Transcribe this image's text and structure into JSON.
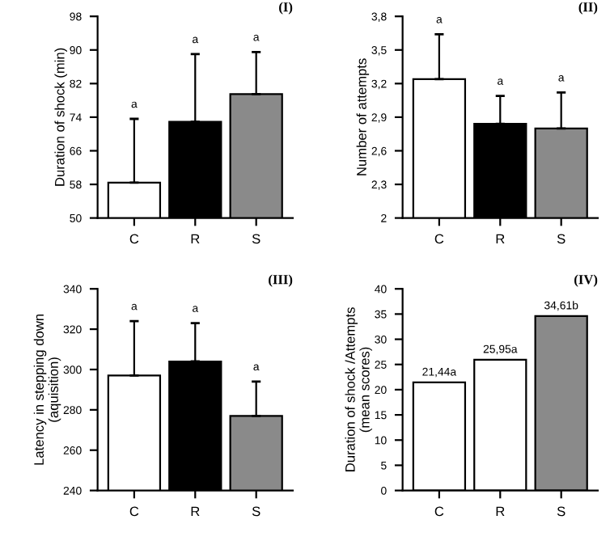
{
  "chart_data": [
    {
      "type": "bar",
      "ylabel": "Duration of shock (min)",
      "categories": [
        "C",
        "R",
        "S"
      ],
      "values": [
        58.4,
        72.9,
        79.5
      ],
      "colors": [
        "#ffffff",
        "#000000",
        "#8a8a8a"
      ],
      "errors": [
        [
          58.4,
          73.6
        ],
        [
          72.9,
          89.0
        ],
        [
          79.5,
          89.5
        ]
      ],
      "ylim": [
        50,
        98
      ],
      "yticks": [
        50,
        58,
        66,
        74,
        82,
        90,
        98
      ],
      "annotations": [
        "(I)",
        {
          "text": "a",
          "x": "C",
          "y": 73.6
        },
        {
          "text": "a",
          "x": "R",
          "y": 89.0
        },
        {
          "text": "a",
          "x": "S",
          "y": 89.5
        }
      ]
    },
    {
      "type": "bar",
      "ylabel": "Number of attempts",
      "categories": [
        "C",
        "R",
        "S"
      ],
      "values": [
        3.24,
        2.84,
        2.8
      ],
      "colors": [
        "#ffffff",
        "#000000",
        "#8a8a8a"
      ],
      "errors": [
        [
          3.24,
          3.64
        ],
        [
          2.84,
          3.09
        ],
        [
          2.8,
          3.12
        ]
      ],
      "ylim": [
        2,
        3.8
      ],
      "yticks": [
        2,
        {
          "value": 2.3,
          "label": "2,3"
        },
        {
          "value": 2.6,
          "label": "2,6"
        },
        {
          "value": 2.9,
          "label": "2,9"
        },
        {
          "value": 3.2,
          "label": "3,2"
        },
        {
          "value": 3.5,
          "label": "3,5"
        },
        {
          "value": 3.8,
          "label": "3,8"
        }
      ],
      "annotations": [
        "(II)",
        {
          "text": "a",
          "x": "C",
          "y": 3.64
        },
        {
          "text": "a",
          "x": "R",
          "y": 3.09
        },
        {
          "text": "a",
          "x": "S",
          "y": 3.12
        }
      ]
    },
    {
      "type": "bar",
      "ylabel": "Latency in stepping down\n(aquisition)",
      "categories": [
        "C",
        "R",
        "S"
      ],
      "values": [
        297,
        304,
        277
      ],
      "colors": [
        "#ffffff",
        "#000000",
        "#8a8a8a"
      ],
      "errors": [
        [
          297,
          324
        ],
        [
          304,
          323
        ],
        [
          277,
          294
        ]
      ],
      "ylim": [
        240,
        340
      ],
      "yticks": [
        240,
        260,
        280,
        300,
        320,
        340
      ],
      "annotations": [
        "(III)",
        {
          "text": "a",
          "x": "C",
          "y": 324
        },
        {
          "text": "a",
          "x": "R",
          "y": 323
        },
        {
          "text": "a",
          "x": "S",
          "y": 294
        }
      ]
    },
    {
      "type": "bar",
      "ylabel": "Duration of shock /Attempts\n(mean scores)",
      "categories": [
        "C",
        "R",
        "S"
      ],
      "values": [
        21.44,
        25.95,
        34.61
      ],
      "colors": [
        "#ffffff",
        "#ffffff",
        "#8a8a8a"
      ],
      "value_labels": [
        "21,44a",
        "25,95a",
        "34,61b"
      ],
      "ylim": [
        0,
        40
      ],
      "yticks": [
        0,
        5,
        10,
        15,
        20,
        25,
        30,
        35,
        40
      ],
      "annotations": [
        "(IV)"
      ]
    }
  ]
}
